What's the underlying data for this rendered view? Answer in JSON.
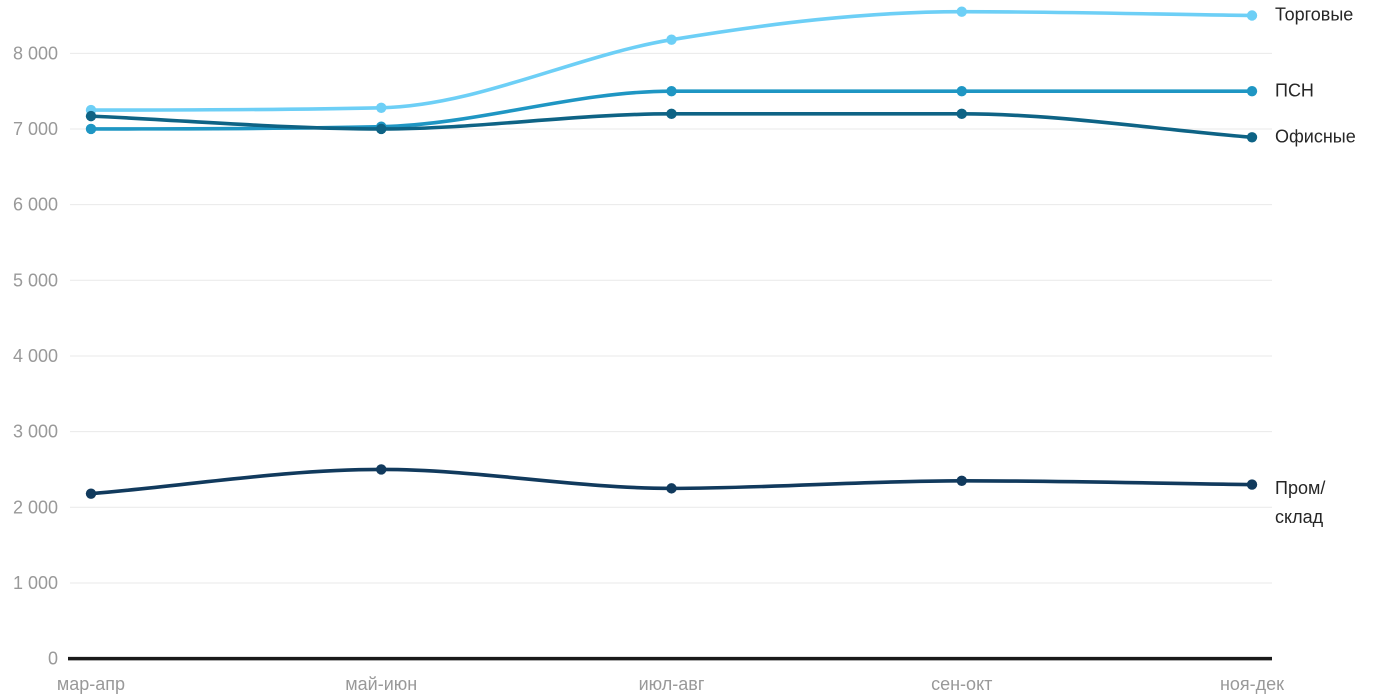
{
  "chart_data": {
    "type": "line",
    "title": "",
    "categories": [
      "мар-апр",
      "май-июн",
      "июл-авг",
      "сен-окт",
      "ноя-дек"
    ],
    "series": [
      {
        "name": "Торговые",
        "label_lines": [
          "Торговые"
        ],
        "color": "#6DCFF6",
        "values": [
          7250,
          7280,
          8180,
          8550,
          8500
        ]
      },
      {
        "name": "ПСН",
        "label_lines": [
          "ПСН"
        ],
        "color": "#1F96C3",
        "values": [
          7000,
          7030,
          7500,
          7500,
          7500
        ]
      },
      {
        "name": "Офисные",
        "label_lines": [
          "Офисные"
        ],
        "color": "#0E6385",
        "values": [
          7170,
          7000,
          7200,
          7200,
          6890
        ]
      },
      {
        "name": "Пром/склад",
        "label_lines": [
          "Пром/",
          "склад"
        ],
        "color": "#113A5D",
        "values": [
          2180,
          2500,
          2250,
          2350,
          2300
        ]
      }
    ],
    "y_axis": {
      "min": 0,
      "max": 8000,
      "tick_step": 1000,
      "tick_values": [
        0,
        1000,
        2000,
        3000,
        4000,
        5000,
        6000,
        7000,
        8000
      ],
      "tick_labels": [
        "0",
        "1 000",
        "2 000",
        "3 000",
        "4 000",
        "5 000",
        "6 000",
        "7 000",
        "8 000"
      ]
    },
    "x_axis": {
      "labels": [
        "мар-апр",
        "май-июн",
        "июл-авг",
        "сен-окт",
        "ноя-дек"
      ]
    },
    "grid": "horizontal",
    "legend_position": "right-of-line-ends"
  },
  "colors": {
    "background": "#FFFFFF",
    "grid_line": "#E9E9E9",
    "axis_line": "#1A1A1A",
    "axis_label": "#999999",
    "legend_text": "#262626"
  }
}
